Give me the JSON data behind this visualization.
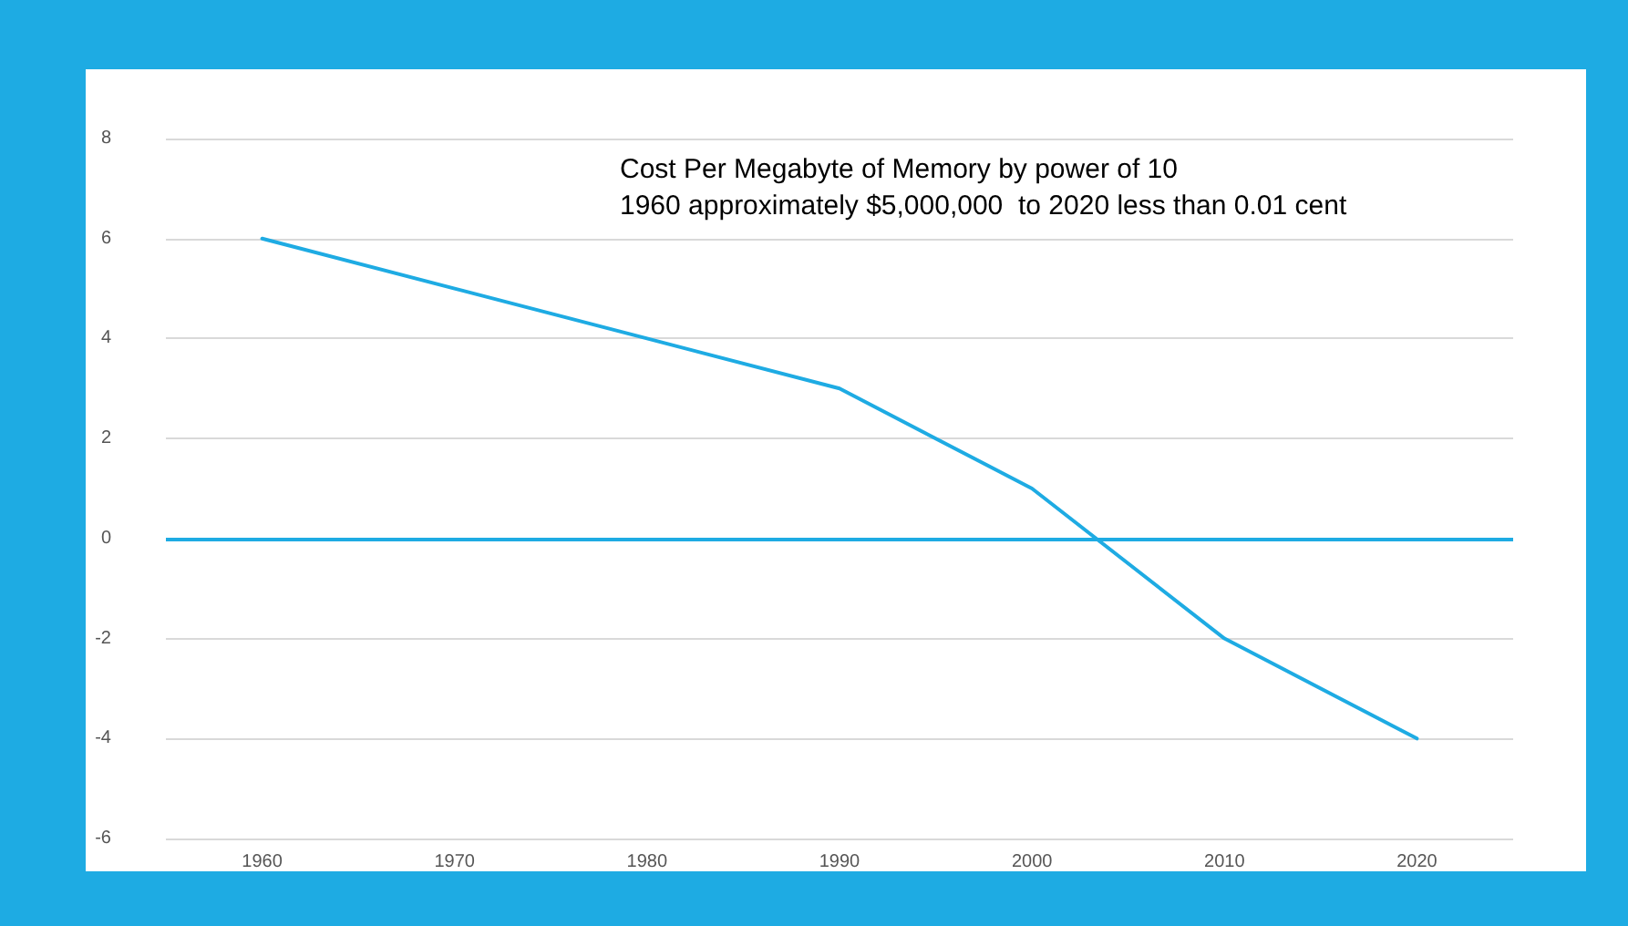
{
  "chart_data": {
    "type": "line",
    "title": "Cost Per Megabyte of Memory by power of 10",
    "subtitle": "1960 approximately $5,000,000  to 2020 less than 0.01 cent",
    "categories": [
      "1960",
      "1970",
      "1980",
      "1990",
      "2000",
      "2010",
      "2020"
    ],
    "series": [
      {
        "color": "#1eabe3",
        "values": [
          6,
          5,
          4,
          3,
          1,
          -2,
          -4
        ]
      }
    ],
    "ylim": [
      -6,
      8
    ],
    "yticks": [
      -6,
      -4,
      -2,
      0,
      2,
      4,
      6,
      8
    ],
    "ref_lines": [
      {
        "axis": "y",
        "value": 0,
        "color": "#1eabe3"
      }
    ],
    "grid": "y",
    "marker": "none",
    "line_style": "solid"
  }
}
